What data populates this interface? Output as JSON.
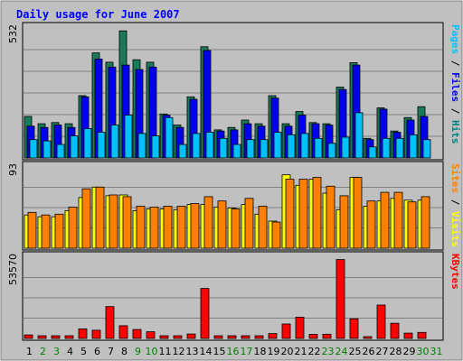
{
  "chart_data": {
    "type": "bar",
    "title": "Daily usage for June 2007",
    "days": [
      "1",
      "2",
      "3",
      "4",
      "5",
      "6",
      "7",
      "8",
      "9",
      "10",
      "11",
      "12",
      "13",
      "14",
      "15",
      "16",
      "17",
      "18",
      "19",
      "20",
      "21",
      "22",
      "23",
      "24",
      "25",
      "26",
      "27",
      "28",
      "29",
      "30",
      "31"
    ],
    "weekend_days": [
      2,
      3,
      9,
      10,
      16,
      17,
      23,
      24,
      30,
      31
    ],
    "panels": [
      {
        "name": "pages-files-hits",
        "ymax_label": "532",
        "ymax": 532,
        "right_labels": [
          {
            "text": "Pages",
            "color": "#00c0ff"
          },
          {
            "text": " / ",
            "color": "#000000"
          },
          {
            "text": "Files",
            "color": "#0000ff"
          },
          {
            "text": " / ",
            "color": "#000000"
          },
          {
            "text": "Hits",
            "color": "#008080"
          }
        ],
        "series": [
          {
            "name": "Hits",
            "color": "#1a7a5a",
            "values": [
              170,
              140,
              145,
              140,
              255,
              430,
              392,
              520,
              402,
              392,
              180,
              135,
              250,
              455,
              115,
              125,
              155,
              140,
              255,
              140,
              190,
              145,
              140,
              290,
              390,
              80,
              205,
              110,
              165,
              210,
              0
            ]
          },
          {
            "name": "Files",
            "color": "#0000ee",
            "values": [
              130,
              125,
              135,
              125,
              250,
              405,
              372,
              380,
              362,
              372,
              175,
              125,
              240,
              440,
              110,
              115,
              140,
              130,
              245,
              130,
              175,
              140,
              135,
              280,
              380,
              75,
              200,
              105,
              155,
              170,
              0
            ]
          },
          {
            "name": "Pages",
            "color": "#00c0ff",
            "values": [
              75,
              70,
              55,
              90,
              120,
              105,
              135,
              175,
              100,
              90,
              165,
              55,
              100,
              105,
              80,
              55,
              75,
              75,
              105,
              95,
              100,
              80,
              60,
              85,
              185,
              45,
              80,
              80,
              95,
              75,
              0
            ]
          }
        ]
      },
      {
        "name": "sites-visits",
        "ymax_label": "93",
        "ymax": 93,
        "right_labels": [
          {
            "text": "Sites",
            "color": "#ff8000"
          },
          {
            "text": " / ",
            "color": "#000000"
          },
          {
            "text": "Visits",
            "color": "#ffff00"
          }
        ],
        "series": [
          {
            "name": "Visits",
            "color": "#ffff00",
            "values": [
              38,
              36,
              36,
              43,
              58,
              70,
              60,
              61,
              43,
              45,
              45,
              44,
              50,
              50,
              47,
              46,
              50,
              39,
              31,
              84,
              72,
              79,
              63,
              44,
              81,
              48,
              54,
              57,
              55,
              55,
              0
            ]
          },
          {
            "name": "Sites",
            "color": "#ff8000",
            "values": [
              41,
              38,
              39,
              47,
              68,
              70,
              61,
              59,
              48,
              47,
              48,
              48,
              51,
              59,
              54,
              45,
              57,
              48,
              30,
              79,
              79,
              81,
              71,
              60,
              81,
              54,
              64,
              64,
              53,
              59,
              0
            ]
          }
        ]
      },
      {
        "name": "kbytes",
        "ymax_label": "53570",
        "ymax": 53570,
        "right_labels": [
          {
            "text": "KBytes",
            "color": "#ff0000"
          }
        ],
        "series": [
          {
            "name": "KBytes",
            "color": "#ff0000",
            "values": [
              2300,
              1800,
              1800,
              1800,
              6300,
              5400,
              21000,
              8400,
              5900,
              4400,
              1800,
              1800,
              2900,
              33000,
              1800,
              1800,
              1800,
              1800,
              3200,
              9500,
              14000,
              2700,
              2800,
              52000,
              13000,
              1200,
              22000,
              10000,
              3500,
              4000,
              0
            ]
          }
        ]
      }
    ]
  }
}
